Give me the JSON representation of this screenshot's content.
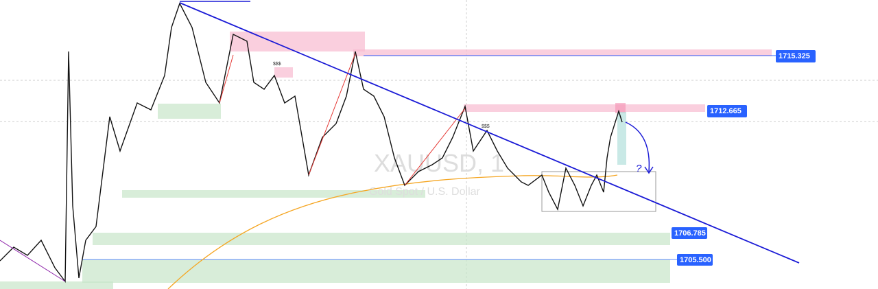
{
  "price_labels": [
    "1715.325",
    "1712.665",
    "1706.785",
    "1705.500"
  ],
  "watermark": {
    "symbol": "XAUUSD, 1",
    "description": "Gold Spot / U.S. Dollar"
  },
  "annotations": {
    "question": "?",
    "liquidity": [
      "$$$",
      "$$$"
    ]
  }
}
